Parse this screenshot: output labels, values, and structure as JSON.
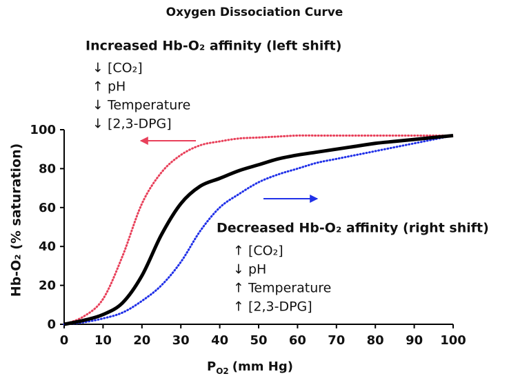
{
  "chart_data": {
    "type": "line",
    "title": "Oxygen Dissociation Curve",
    "xlabel": [
      "P",
      "O2",
      "(mm Hg)"
    ],
    "ylabel": "Hb-O₂ (% saturation)",
    "x": [
      0,
      5,
      10,
      15,
      20,
      25,
      30,
      35,
      40,
      45,
      50,
      55,
      60,
      65,
      70,
      75,
      80,
      85,
      90,
      95,
      100
    ],
    "series": [
      {
        "color": "#e8405a",
        "dash": true,
        "values": [
          0,
          4,
          13,
          35,
          62,
          78,
          87,
          92,
          94,
          95.5,
          96,
          96.5,
          97,
          97,
          97,
          97,
          97,
          97,
          97,
          97,
          97
        ]
      },
      {
        "color": "#2030e8",
        "dash": true,
        "values": [
          0,
          1,
          3,
          6,
          12,
          20,
          32,
          48,
          60,
          67,
          73,
          77,
          80,
          83,
          85,
          87,
          89,
          91,
          93,
          95,
          97
        ]
      },
      {
        "color": "#000000",
        "dash": false,
        "values": [
          0,
          2,
          5,
          11,
          25,
          46,
          62,
          71,
          75,
          79,
          82,
          85,
          87,
          88.5,
          90,
          91.5,
          93,
          94,
          95,
          96,
          97
        ]
      }
    ],
    "xlim": [
      0,
      100
    ],
    "xticks": [
      0,
      10,
      20,
      30,
      40,
      50,
      60,
      70,
      80,
      90,
      100
    ],
    "ylim": [
      0,
      100
    ],
    "yticks": [
      0,
      20,
      40,
      60,
      80,
      100
    ],
    "annotations": [
      {
        "title": "Increased Hb-O₂ affinity (left shift)",
        "lines": [
          "↓ [CO₂]",
          "↑ pH",
          "↓ Temperature",
          "↓ [2,3-DPG]"
        ]
      },
      {
        "title": "Decreased Hb-O₂ affinity (right shift)",
        "lines": [
          "↑ [CO₂]",
          "↓ pH",
          "↑ Temperature",
          "↑ [2,3-DPG]"
        ]
      }
    ]
  }
}
